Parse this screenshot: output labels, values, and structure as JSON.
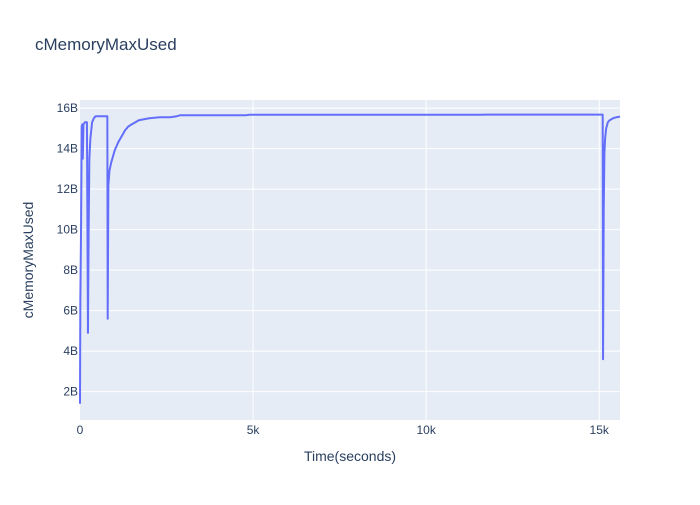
{
  "chart_data": {
    "type": "line",
    "title": "cMemoryMaxUsed",
    "xlabel": "Time(seconds)",
    "ylabel": "cMemoryMaxUsed",
    "xlim": [
      0,
      15600
    ],
    "ylim": [
      0.6,
      16.4
    ],
    "x_ticks": [
      {
        "value": 0,
        "label": "0"
      },
      {
        "value": 5000,
        "label": "5k"
      },
      {
        "value": 10000,
        "label": "10k"
      },
      {
        "value": 15000,
        "label": "15k"
      }
    ],
    "y_ticks": [
      {
        "value": 2,
        "label": "2B"
      },
      {
        "value": 4,
        "label": "4B"
      },
      {
        "value": 6,
        "label": "6B"
      },
      {
        "value": 8,
        "label": "8B"
      },
      {
        "value": 10,
        "label": "10B"
      },
      {
        "value": 12,
        "label": "12B"
      },
      {
        "value": 14,
        "label": "14B"
      },
      {
        "value": 16,
        "label": "16B"
      }
    ],
    "grid": true,
    "line_color": "#636efa",
    "plot_bg": "#e5ecf6",
    "grid_color": "#ffffff",
    "series": [
      {
        "name": "",
        "x": [
          0,
          10,
          30,
          50,
          70,
          80,
          100,
          140,
          200,
          230,
          250,
          270,
          300,
          350,
          400,
          450,
          550,
          700,
          790,
          800,
          820,
          850,
          900,
          1000,
          1100,
          1200,
          1300,
          1400,
          1500,
          1700,
          2000,
          2300,
          2600,
          2800,
          2900,
          3500,
          4800,
          4900,
          11600,
          11700,
          15100,
          15110,
          15130,
          15150,
          15170,
          15200,
          15250,
          15300,
          15400,
          15500,
          15600
        ],
        "y": [
          1.4,
          6.5,
          10.0,
          15.1,
          15.2,
          13.5,
          15.2,
          15.3,
          15.3,
          4.9,
          10.0,
          13.5,
          14.5,
          15.3,
          15.5,
          15.6,
          15.6,
          15.6,
          15.6,
          5.6,
          12.2,
          12.9,
          13.3,
          13.9,
          14.3,
          14.6,
          14.9,
          15.1,
          15.2,
          15.4,
          15.5,
          15.55,
          15.55,
          15.6,
          15.65,
          15.65,
          15.65,
          15.67,
          15.67,
          15.68,
          15.68,
          3.6,
          11.0,
          13.8,
          14.5,
          15.0,
          15.3,
          15.4,
          15.5,
          15.55,
          15.58
        ]
      }
    ]
  }
}
